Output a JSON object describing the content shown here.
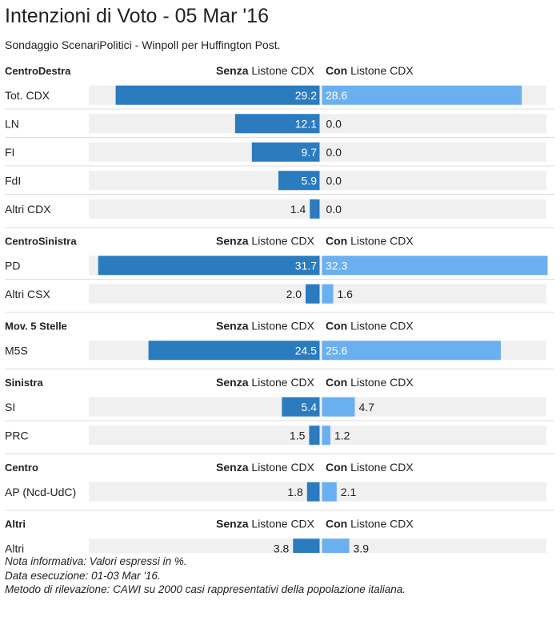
{
  "title": "Intenzioni di Voto - 05 Mar '16",
  "subtitle": "Sondaggio ScenariPolitici - Winpoll per Huffington Post.",
  "header_labels": {
    "left_bold": "Senza",
    "left_rest": " Listone CDX",
    "right_bold": "Con",
    "right_rest": " Listone CDX"
  },
  "colors": {
    "senza": "#2b7bbf",
    "con": "#6aaff0",
    "track": "#f0f0f0",
    "divider": "#dddddd"
  },
  "notes": [
    "Nota informativa: Valori espressi in %.",
    "Data esecuzione: 01-03 Mar '16.",
    "Metodo di rilevazione: CAWI su 2000 casi rappresentativi della popolazione italiana."
  ],
  "chart_data": {
    "type": "bar",
    "orientation": "horizontal-diverging",
    "xlim": [
      0,
      32.3
    ],
    "series": [
      {
        "name": "Senza Listone CDX"
      },
      {
        "name": "Con Listone CDX"
      }
    ],
    "groups": [
      {
        "name": "CentroDestra",
        "rows": [
          {
            "label": "Tot. CDX",
            "senza": 29.2,
            "con": 28.6,
            "senza_text": "29.2",
            "con_text": "28.6"
          },
          {
            "label": "LN",
            "senza": 12.1,
            "con": 0.0,
            "senza_text": "12.1",
            "con_text": "0.0"
          },
          {
            "label": "FI",
            "senza": 9.7,
            "con": 0.0,
            "senza_text": "9.7",
            "con_text": "0.0"
          },
          {
            "label": "FdI",
            "senza": 5.9,
            "con": 0.0,
            "senza_text": "5.9",
            "con_text": "0.0"
          },
          {
            "label": "Altri CDX",
            "senza": 1.4,
            "con": 0.0,
            "senza_text": "1.4",
            "con_text": "0.0"
          }
        ]
      },
      {
        "name": "CentroSinistra",
        "rows": [
          {
            "label": "PD",
            "senza": 31.7,
            "con": 32.3,
            "senza_text": "31.7",
            "con_text": "32.3"
          },
          {
            "label": "Altri CSX",
            "senza": 2.0,
            "con": 1.6,
            "senza_text": "2.0",
            "con_text": "1.6"
          }
        ]
      },
      {
        "name": "Mov. 5 Stelle",
        "rows": [
          {
            "label": "M5S",
            "senza": 24.5,
            "con": 25.6,
            "senza_text": "24.5",
            "con_text": "25.6"
          }
        ]
      },
      {
        "name": "Sinistra",
        "rows": [
          {
            "label": "SI",
            "senza": 5.4,
            "con": 4.7,
            "senza_text": "5.4",
            "con_text": "4.7"
          },
          {
            "label": "PRC",
            "senza": 1.5,
            "con": 1.2,
            "senza_text": "1.5",
            "con_text": "1.2"
          }
        ]
      },
      {
        "name": "Centro",
        "rows": [
          {
            "label": "AP (Ncd-UdC)",
            "senza": 1.8,
            "con": 2.1,
            "senza_text": "1.8",
            "con_text": "2.1"
          }
        ]
      },
      {
        "name": "Altri",
        "rows": [
          {
            "label": "Altri",
            "senza": 3.8,
            "con": 3.9,
            "senza_text": "3.8",
            "con_text": "3.9"
          }
        ]
      }
    ]
  }
}
